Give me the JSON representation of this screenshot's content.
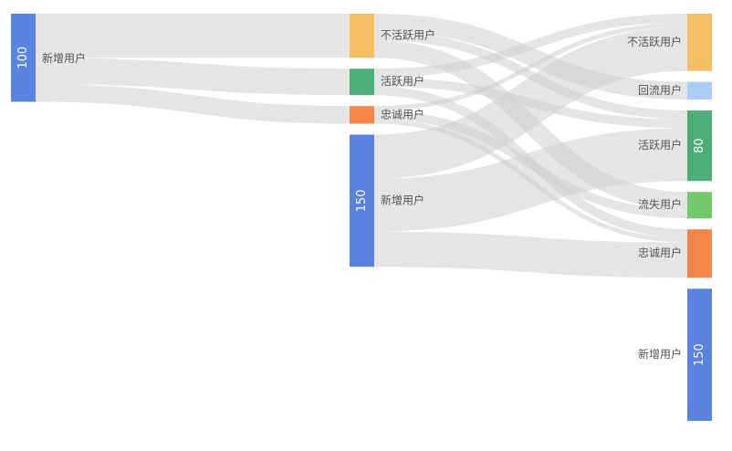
{
  "chart_data": {
    "type": "sankey",
    "colors": {
      "inactive": "#F6BF66",
      "active": "#4CAF7A",
      "loyal": "#F6854A",
      "new": "#5A83DF",
      "returned": "#A9CDF4",
      "lost": "#72C96A",
      "link": "#CFCFCF"
    },
    "nodes": [
      {
        "id": "s0_new",
        "stage": 0,
        "label": "新增用户",
        "value": 100,
        "value_label": "100",
        "color_key": "new"
      },
      {
        "id": "s1_inactive",
        "stage": 1,
        "label": "不活跃用户",
        "value": 50,
        "value_label": "",
        "color_key": "inactive"
      },
      {
        "id": "s1_active",
        "stage": 1,
        "label": "活跃用户",
        "value": 30,
        "value_label": "",
        "color_key": "active"
      },
      {
        "id": "s1_loyal",
        "stage": 1,
        "label": "忠诚用户",
        "value": 20,
        "value_label": "",
        "color_key": "loyal"
      },
      {
        "id": "s1_new",
        "stage": 1,
        "label": "新增用户",
        "value": 150,
        "value_label": "150",
        "color_key": "new"
      },
      {
        "id": "s2_inactive",
        "stage": 2,
        "label": "不活跃用户",
        "value": 65,
        "value_label": "",
        "color_key": "inactive"
      },
      {
        "id": "s2_returned",
        "stage": 2,
        "label": "回流用户",
        "value": 20,
        "value_label": "",
        "color_key": "returned"
      },
      {
        "id": "s2_active",
        "stage": 2,
        "label": "活跃用户",
        "value": 80,
        "value_label": "80",
        "color_key": "active"
      },
      {
        "id": "s2_lost",
        "stage": 2,
        "label": "流失用户",
        "value": 30,
        "value_label": "",
        "color_key": "lost"
      },
      {
        "id": "s2_loyal",
        "stage": 2,
        "label": "忠诚用户",
        "value": 55,
        "value_label": "",
        "color_key": "loyal"
      },
      {
        "id": "s2_new",
        "stage": 2,
        "label": "新增用户",
        "value": 150,
        "value_label": "150",
        "color_key": "new"
      }
    ],
    "links": [
      {
        "source": "s0_new",
        "target": "s1_inactive",
        "value": 50
      },
      {
        "source": "s0_new",
        "target": "s1_active",
        "value": 30
      },
      {
        "source": "s0_new",
        "target": "s1_loyal",
        "value": 20
      },
      {
        "source": "s1_inactive",
        "target": "s2_returned",
        "value": 20
      },
      {
        "source": "s1_inactive",
        "target": "s2_active",
        "value": 10
      },
      {
        "source": "s1_inactive",
        "target": "s2_lost",
        "value": 20
      },
      {
        "source": "s1_active",
        "target": "s2_inactive",
        "value": 10
      },
      {
        "source": "s1_active",
        "target": "s2_active",
        "value": 10
      },
      {
        "source": "s1_active",
        "target": "s2_loyal",
        "value": 10
      },
      {
        "source": "s1_loyal",
        "target": "s2_inactive",
        "value": 5
      },
      {
        "source": "s1_loyal",
        "target": "s2_lost",
        "value": 10
      },
      {
        "source": "s1_loyal",
        "target": "s2_loyal",
        "value": 5
      },
      {
        "source": "s1_new",
        "target": "s2_inactive",
        "value": 50
      },
      {
        "source": "s1_new",
        "target": "s2_active",
        "value": 60
      },
      {
        "source": "s1_new",
        "target": "s2_loyal",
        "value": 40
      }
    ]
  }
}
